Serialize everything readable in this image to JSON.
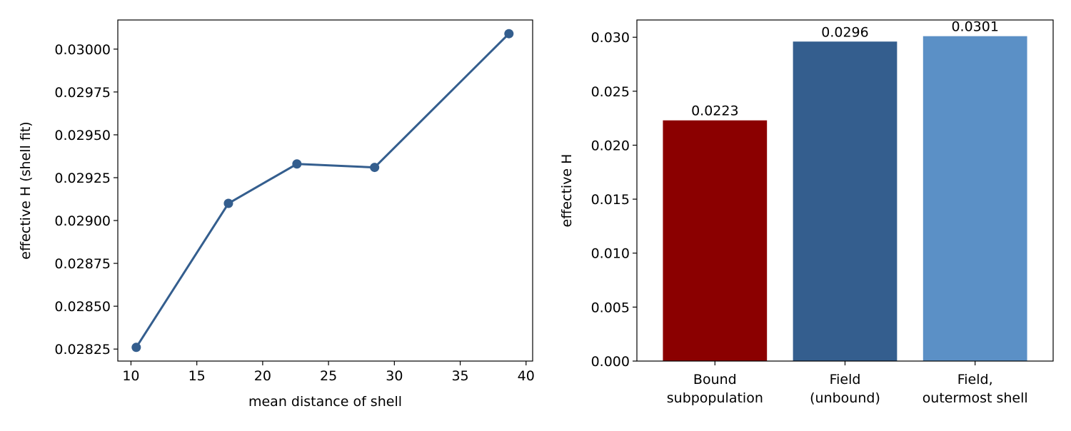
{
  "chart_data": [
    {
      "type": "line",
      "title": "",
      "xlabel": "mean distance of shell",
      "ylabel": "effective H (shell fit)",
      "xlim": [
        9,
        40.5
      ],
      "ylim": [
        0.02818,
        0.03017
      ],
      "xticks": [
        10,
        15,
        20,
        25,
        30,
        35,
        40
      ],
      "xtick_labels": [
        "10",
        "15",
        "20",
        "25",
        "30",
        "35",
        "40"
      ],
      "yticks": [
        0.02825,
        0.0285,
        0.02875,
        0.029,
        0.02925,
        0.0295,
        0.02975,
        0.03
      ],
      "ytick_labels": [
        "0.02825",
        "0.02850",
        "0.02875",
        "0.02900",
        "0.02925",
        "0.02950",
        "0.02975",
        "0.03000"
      ],
      "grid": false,
      "series": [
        {
          "x": [
            10.4,
            17.4,
            22.6,
            28.5,
            38.7
          ],
          "y": [
            0.02826,
            0.0291,
            0.02933,
            0.02931,
            0.03009
          ],
          "color": "#345e8e",
          "marker": "circle"
        }
      ]
    },
    {
      "type": "bar",
      "title": "",
      "xlabel": "",
      "ylabel": "effective H",
      "ylim": [
        0,
        0.0316
      ],
      "yticks": [
        0,
        0.005,
        0.01,
        0.015,
        0.02,
        0.025,
        0.03
      ],
      "ytick_labels": [
        "0.000",
        "0.005",
        "0.010",
        "0.015",
        "0.020",
        "0.025",
        "0.030"
      ],
      "grid": false,
      "categories": [
        [
          "Bound",
          "subpopulation"
        ],
        [
          "Field",
          "(unbound)"
        ],
        [
          "Field,",
          "outermost shell"
        ]
      ],
      "values": [
        0.0223,
        0.0296,
        0.0301
      ],
      "value_labels": [
        "0.0223",
        "0.0296",
        "0.0301"
      ],
      "colors": [
        "#8b0000",
        "#345e8e",
        "#5b90c6"
      ]
    }
  ]
}
